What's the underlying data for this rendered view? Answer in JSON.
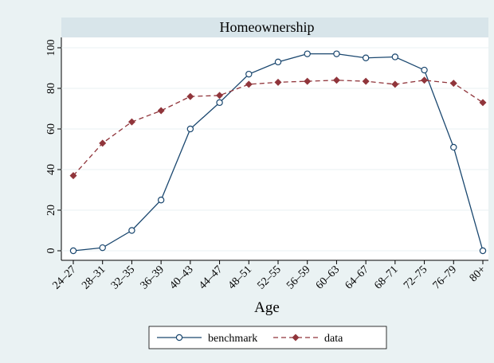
{
  "chart_data": {
    "type": "line",
    "title": "Homeownership",
    "x_label": "Age",
    "categories": [
      "24–27",
      "28–31",
      "32–35",
      "36–39",
      "40–43",
      "44–47",
      "48–51",
      "52–55",
      "56–59",
      "60–63",
      "64–67",
      "68–71",
      "72–75",
      "76–79",
      "80+"
    ],
    "series": [
      {
        "name": "benchmark",
        "color": "#1a476f",
        "marker": "circle",
        "dash": false,
        "values": [
          0,
          1.5,
          10,
          25,
          60,
          73,
          87,
          93,
          97,
          97,
          95,
          95.5,
          89,
          51,
          0
        ]
      },
      {
        "name": "data",
        "color": "#90353b",
        "marker": "diamond",
        "dash": true,
        "values": [
          37,
          53,
          63.5,
          69,
          76,
          76.5,
          82,
          83,
          83.5,
          84,
          83.5,
          82,
          84,
          82.5,
          73
        ]
      }
    ],
    "ylim": [
      0,
      100
    ],
    "yticks": [
      0,
      20,
      40,
      60,
      80,
      100
    ],
    "grid": true,
    "legend": "bottom"
  }
}
